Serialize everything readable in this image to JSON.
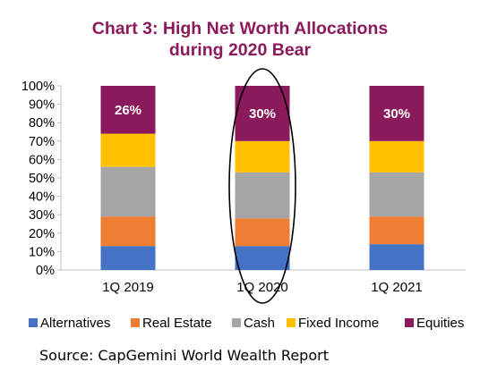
{
  "chart_data": {
    "type": "bar",
    "stacked": true,
    "title_lines": [
      "Chart 3: High Net Worth Allocations",
      "during 2020 Bear"
    ],
    "categories": [
      "1Q 2019",
      "1Q 2020",
      "1Q 2021"
    ],
    "series": [
      {
        "name": "Alternatives",
        "color": "#4472c4",
        "values": [
          13,
          13,
          14
        ]
      },
      {
        "name": "Real Estate",
        "color": "#ed7d31",
        "values": [
          16,
          15,
          15
        ]
      },
      {
        "name": "Cash",
        "color": "#a5a5a5",
        "values": [
          27,
          25,
          24
        ]
      },
      {
        "name": "Fixed Income",
        "color": "#ffc000",
        "values": [
          18,
          17,
          17
        ]
      },
      {
        "name": "Equities",
        "color": "#8b1a5c",
        "values": [
          26,
          30,
          30
        ]
      }
    ],
    "data_labels": [
      "26%",
      "30%",
      "30%"
    ],
    "y_ticks": [
      "0%",
      "10%",
      "20%",
      "30%",
      "40%",
      "50%",
      "60%",
      "70%",
      "80%",
      "90%",
      "100%"
    ],
    "ylim": [
      0,
      100
    ],
    "legend_position": "bottom",
    "highlighted_category": "1Q 2020",
    "grid": false
  },
  "source": "Source: CapGemini World Wealth Report"
}
